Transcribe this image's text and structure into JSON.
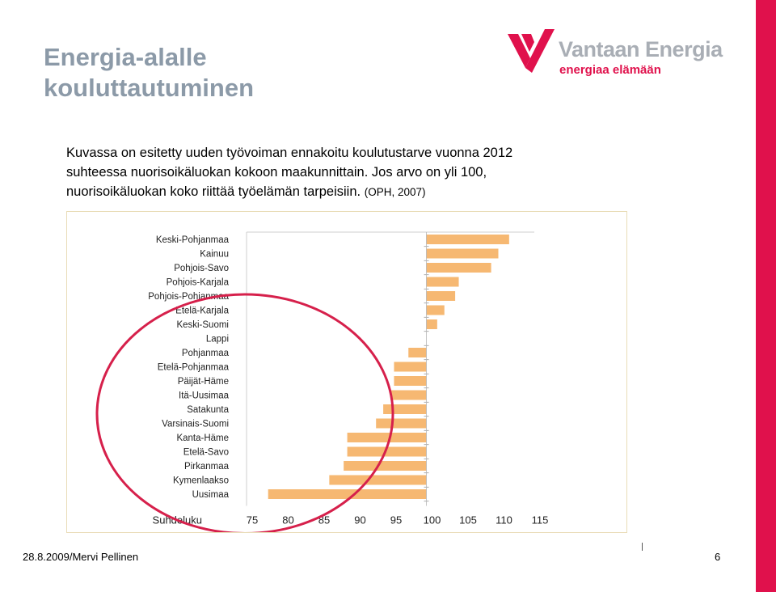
{
  "slide": {
    "title_line1": "Energia-alalle",
    "title_line2": "kouluttautuminen",
    "description": "Kuvassa on esitetty uuden työvoiman ennakoitu koulutustarve vuonna 2012 suhteessa nuorisoikäluokan kokoon maakunnittain. Jos arvo on yli 100, nuorisoikäluokan koko riittää työelämän tarpeisiin.",
    "source": "(OPH, 2007)",
    "footer_left": "28.8.2009/Mervi Pellinen",
    "page_number": "6"
  },
  "logo": {
    "name": "Vantaan Energia",
    "tagline": "energiaa elämään",
    "mark_icon": "v-chevron-logo-icon"
  },
  "colors": {
    "accent": "#e0114c",
    "bar": "#f6b872",
    "title": "#8c9aa8",
    "ellipse": "#d6204b"
  },
  "chart_data": {
    "type": "bar",
    "orientation": "horizontal",
    "categories": [
      "Keski-Pohjanmaa",
      "Kainuu",
      "Pohjois-Savo",
      "Pohjois-Karjala",
      "Pohjois-Pohjanmaa",
      "Etelä-Karjala",
      "Keski-Suomi",
      "Lappi",
      "Pohjanmaa",
      "Etelä-Pohjanmaa",
      "Päijät-Häme",
      "Itä-Uusimaa",
      "Satakunta",
      "Varsinais-Suomi",
      "Kanta-Häme",
      "Etelä-Savo",
      "Pirkanmaa",
      "Kymenlaakso",
      "Uusimaa"
    ],
    "values": [
      111.5,
      110,
      109,
      104.5,
      104,
      102.5,
      101.5,
      100,
      97.5,
      95.5,
      95.5,
      95,
      94,
      93,
      89,
      89,
      88.5,
      86.5,
      78
    ],
    "baseline": 100,
    "xlabel": "Suhdeluku",
    "xticks": [
      75,
      80,
      85,
      90,
      95,
      100,
      105,
      110,
      115
    ],
    "xlim": [
      75,
      115
    ],
    "highlight": {
      "shape": "ellipse",
      "from_category": "Keski-Suomi",
      "to_category": "Uusimaa"
    }
  }
}
